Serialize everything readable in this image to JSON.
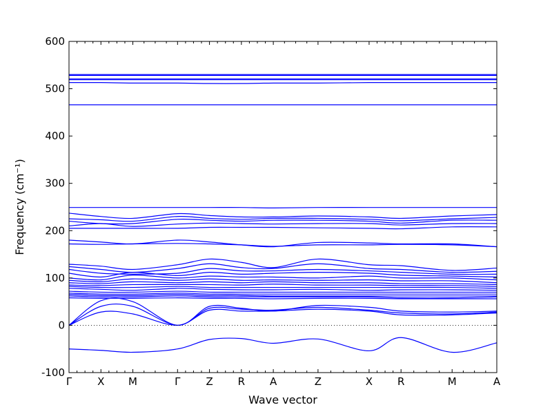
{
  "chart_data": {
    "type": "line",
    "xlabel": "Wave vector",
    "ylabel": "Frequency (cm⁻¹)",
    "ylim": [
      -100,
      600
    ],
    "yticks": [
      -100,
      0,
      100,
      200,
      300,
      400,
      500,
      600
    ],
    "grid": false,
    "zero_line": {
      "y": 0,
      "style": "dotted"
    },
    "x_ticks": [
      {
        "label": "Γ",
        "x": 0
      },
      {
        "label": "X",
        "x": 0.5
      },
      {
        "label": "M",
        "x": 1.0
      },
      {
        "label": "Γ",
        "x": 1.7
      },
      {
        "label": "Z",
        "x": 2.2
      },
      {
        "label": "R",
        "x": 2.7
      },
      {
        "label": "A",
        "x": 3.2
      },
      {
        "label": "Z",
        "x": 3.9
      },
      {
        "label": "X",
        "x": 4.7
      },
      {
        "label": "R",
        "x": 5.2
      },
      {
        "label": "M",
        "x": 6.0
      },
      {
        "label": "A",
        "x": 6.7
      }
    ],
    "series": [
      {
        "values": [
          530,
          530,
          530,
          530,
          530,
          530,
          530,
          530,
          530,
          530,
          530,
          530
        ]
      },
      {
        "values": [
          528,
          528,
          528,
          528,
          528,
          528,
          528,
          528,
          528,
          528,
          528,
          528
        ]
      },
      {
        "values": [
          521,
          521,
          521,
          521,
          521,
          521,
          521,
          521,
          521,
          521,
          521,
          521
        ]
      },
      {
        "values": [
          519,
          519,
          519,
          519,
          519,
          519,
          519,
          519,
          519,
          519,
          519,
          519
        ]
      },
      {
        "values": [
          513,
          513,
          512,
          512,
          511,
          511,
          512,
          512,
          513,
          513,
          513,
          513
        ]
      },
      {
        "values": [
          466,
          466,
          466,
          466,
          466,
          466,
          466,
          466,
          466,
          466,
          466,
          466
        ]
      },
      {
        "values": [
          249,
          249,
          249,
          249,
          249,
          249,
          248,
          249,
          249,
          249,
          249,
          249
        ]
      },
      {
        "values": [
          237,
          230,
          226,
          236,
          232,
          229,
          229,
          231,
          229,
          226,
          231,
          234
        ]
      },
      {
        "values": [
          225,
          223,
          220,
          230,
          226,
          224,
          226,
          226,
          224,
          221,
          225,
          228
        ]
      },
      {
        "values": [
          220,
          215,
          215,
          224,
          222,
          220,
          222,
          222,
          220,
          216,
          222,
          222
        ]
      },
      {
        "values": [
          210,
          215,
          209,
          214,
          216,
          215,
          214,
          215,
          215,
          212,
          215,
          215
        ]
      },
      {
        "values": [
          205,
          205,
          205,
          205,
          207,
          207,
          207,
          206,
          205,
          204,
          208,
          208
        ]
      },
      {
        "values": [
          180,
          176,
          172,
          180,
          176,
          170,
          166,
          175,
          174,
          172,
          172,
          166
        ]
      },
      {
        "values": [
          172,
          171,
          172,
          173,
          172,
          170,
          167,
          170,
          170,
          171,
          170,
          166
        ]
      },
      {
        "values": [
          129,
          125,
          118,
          128,
          140,
          133,
          122,
          140,
          128,
          126,
          116,
          121
        ]
      },
      {
        "values": [
          124,
          118,
          112,
          120,
          130,
          122,
          120,
          130,
          120,
          118,
          112,
          114
        ]
      },
      {
        "values": [
          118,
          110,
          108,
          110,
          120,
          115,
          115,
          118,
          115,
          112,
          108,
          108
        ]
      },
      {
        "values": [
          110,
          102,
          112,
          105,
          112,
          108,
          110,
          112,
          110,
          106,
          104,
          102
        ]
      },
      {
        "values": [
          100,
          96,
          106,
          100,
          104,
          102,
          102,
          100,
          104,
          100,
          100,
          96
        ]
      },
      {
        "values": [
          95,
          92,
          98,
          95,
          98,
          95,
          96,
          95,
          96,
          94,
          94,
          90
        ]
      },
      {
        "values": [
          90,
          88,
          92,
          90,
          92,
          90,
          92,
          90,
          90,
          88,
          88,
          86
        ]
      },
      {
        "values": [
          85,
          84,
          86,
          86,
          86,
          85,
          87,
          85,
          85,
          84,
          84,
          82
        ]
      },
      {
        "values": [
          82,
          80,
          80,
          82,
          80,
          80,
          80,
          80,
          80,
          80,
          80,
          78
        ]
      },
      {
        "values": [
          78,
          76,
          74,
          78,
          76,
          75,
          75,
          76,
          74,
          75,
          75,
          74
        ]
      },
      {
        "values": [
          72,
          70,
          70,
          72,
          70,
          70,
          70,
          70,
          70,
          70,
          70,
          70
        ]
      },
      {
        "values": [
          68,
          66,
          66,
          68,
          66,
          66,
          66,
          66,
          66,
          66,
          66,
          66
        ]
      },
      {
        "values": [
          65,
          63,
          63,
          65,
          63,
          63,
          62,
          62,
          62,
          62,
          62,
          62
        ]
      },
      {
        "values": [
          62,
          60,
          60,
          62,
          60,
          60,
          60,
          60,
          60,
          58,
          58,
          60
        ]
      },
      {
        "values": [
          58,
          57,
          57,
          58,
          57,
          57,
          56,
          57,
          57,
          56,
          56,
          56
        ]
      },
      {
        "values": [
          0,
          52,
          50,
          0,
          40,
          36,
          30,
          42,
          38,
          30,
          28,
          30
        ]
      },
      {
        "values": [
          0,
          40,
          40,
          0,
          36,
          34,
          32,
          38,
          32,
          26,
          24,
          28
        ]
      },
      {
        "values": [
          0,
          28,
          24,
          0,
          32,
          30,
          30,
          34,
          30,
          22,
          22,
          26
        ]
      },
      {
        "values": [
          -50,
          -53,
          -57,
          -50,
          -30,
          -28,
          -38,
          -29,
          -54,
          -26,
          -57,
          -37
        ]
      }
    ]
  }
}
